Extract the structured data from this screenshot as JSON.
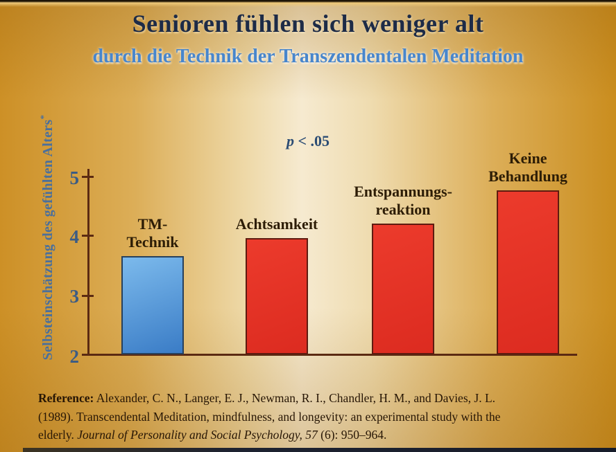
{
  "chart_data": {
    "type": "bar",
    "title": "Senioren fühlen sich weniger alt",
    "subtitle": "durch die Technik der Transzendentalen Meditation",
    "significance": {
      "symbol": "p",
      "comparison": " < .05"
    },
    "ylabel": "Selbsteinschätzung des gefühlten Alters",
    "ylabel_footnote_marker": "*",
    "ylim": [
      2,
      5
    ],
    "yticks": [
      "5",
      "4",
      "3",
      "2"
    ],
    "grid": "off",
    "legend": "none",
    "categories": [
      "TM-Technik",
      "Achtsamkeit",
      "Entspannungsreaktion",
      "Keine Behandlung"
    ],
    "values": [
      3.65,
      3.95,
      4.2,
      4.75
    ],
    "bars": [
      {
        "label_lines": [
          "TM-",
          "Technik"
        ],
        "value": 3.65,
        "fill_top": "#7cbaec",
        "fill_bottom": "#3a7cc6",
        "border": "#27405c"
      },
      {
        "label_lines": [
          "Achtsamkeit"
        ],
        "value": 3.95,
        "fill_top": "#ec3b2c",
        "fill_bottom": "#dc2b20",
        "border": "#5e1b10"
      },
      {
        "label_lines": [
          "Entspannungs-",
          "reaktion"
        ],
        "value": 4.2,
        "fill_top": "#ec3b2c",
        "fill_bottom": "#dc2b20",
        "border": "#5e1b10"
      },
      {
        "label_lines": [
          "Keine",
          "Behandlung"
        ],
        "value": 4.75,
        "fill_top": "#ec3b2c",
        "fill_bottom": "#dc2b20",
        "border": "#5e1b10"
      }
    ]
  },
  "reference": {
    "label": "Reference:",
    "line1_rest": " Alexander, C. N., Langer, E. J., Newman, R. I., Chandler, H. M., and Davies, J. L.",
    "line2": "(1989). Transcendental Meditation, mindfulness, and longevity: an experimental study with the",
    "line3_pre": "elderly. ",
    "line3_italic": "Journal of Personality and Social Psychology, 57",
    "line3_post": " (6): 950–964."
  },
  "colors": {
    "background_center": "#f6ead0",
    "background_edge": "#cd9026",
    "title_color": "#1d2b47",
    "subtitle_color": "#4886cc",
    "axis_color": "#5b2a12",
    "tick_label_color": "#3c5c84",
    "y_axis_title_color": "#4a6f9c",
    "bar_label_color": "#2d1d06",
    "bar_blue": "#4b92d8",
    "bar_red": "#e5352a",
    "reference_color": "#271605"
  }
}
